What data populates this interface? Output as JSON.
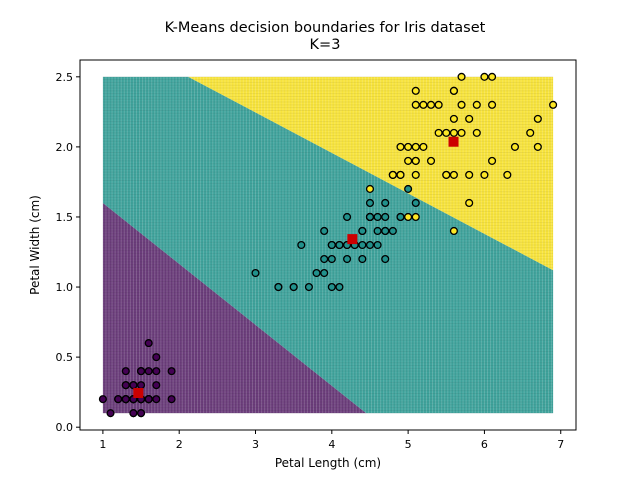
{
  "chart_data": {
    "type": "scatter",
    "title": "K-Means decision boundaries for Iris dataset",
    "subtitle": "K=3",
    "xlabel": "Petal Length (cm)",
    "ylabel": "Petal Width (cm)",
    "xlim": [
      0.7,
      7.2
    ],
    "ylim": [
      -0.02,
      2.62
    ],
    "xticks": [
      1,
      2,
      3,
      4,
      5,
      6,
      7
    ],
    "xtick_labels": [
      "1",
      "2",
      "3",
      "4",
      "5",
      "6",
      "7"
    ],
    "yticks": [
      0.0,
      0.5,
      1.0,
      1.5,
      2.0,
      2.5
    ],
    "ytick_labels": [
      "0.0",
      "0.5",
      "1.0",
      "1.5",
      "2.0",
      "2.5"
    ],
    "grid": false,
    "mesh_extent": {
      "x": [
        1.0,
        6.9
      ],
      "y": [
        0.1,
        2.5
      ]
    },
    "decision_regions": [
      {
        "cluster": 0,
        "color": "#6b3d7b",
        "polygon": [
          [
            1.0,
            0.1
          ],
          [
            4.45,
            0.1
          ],
          [
            1.0,
            1.6
          ]
        ]
      },
      {
        "cluster": 1,
        "color": "#3fa39c",
        "polygon": [
          [
            1.0,
            1.6
          ],
          [
            4.45,
            0.1
          ],
          [
            6.9,
            0.1
          ],
          [
            6.9,
            1.12
          ],
          [
            2.12,
            2.5
          ],
          [
            1.0,
            2.5
          ]
        ]
      },
      {
        "cluster": 2,
        "color": "#f8e43c",
        "polygon": [
          [
            2.12,
            2.5
          ],
          [
            6.9,
            2.5
          ],
          [
            6.9,
            1.12
          ]
        ]
      }
    ],
    "class_colors": [
      "#440154",
      "#21918c",
      "#fde725"
    ],
    "centroid_color": "#cc0000",
    "centroids": [
      [
        1.464,
        0.244
      ],
      [
        4.269,
        1.342
      ],
      [
        5.595,
        2.037
      ]
    ],
    "series": [
      {
        "class": 0,
        "points": [
          [
            1.4,
            0.2
          ],
          [
            1.4,
            0.2
          ],
          [
            1.3,
            0.2
          ],
          [
            1.5,
            0.2
          ],
          [
            1.4,
            0.2
          ],
          [
            1.7,
            0.4
          ],
          [
            1.4,
            0.3
          ],
          [
            1.5,
            0.2
          ],
          [
            1.4,
            0.2
          ],
          [
            1.5,
            0.1
          ],
          [
            1.5,
            0.2
          ],
          [
            1.6,
            0.2
          ],
          [
            1.4,
            0.1
          ],
          [
            1.1,
            0.1
          ],
          [
            1.2,
            0.2
          ],
          [
            1.5,
            0.4
          ],
          [
            1.3,
            0.4
          ],
          [
            1.4,
            0.3
          ],
          [
            1.7,
            0.3
          ],
          [
            1.5,
            0.3
          ],
          [
            1.7,
            0.2
          ],
          [
            1.5,
            0.4
          ],
          [
            1.0,
            0.2
          ],
          [
            1.7,
            0.5
          ],
          [
            1.9,
            0.2
          ],
          [
            1.6,
            0.2
          ],
          [
            1.6,
            0.4
          ],
          [
            1.5,
            0.2
          ],
          [
            1.4,
            0.2
          ],
          [
            1.6,
            0.2
          ],
          [
            1.6,
            0.2
          ],
          [
            1.5,
            0.4
          ],
          [
            1.5,
            0.1
          ],
          [
            1.4,
            0.2
          ],
          [
            1.5,
            0.2
          ],
          [
            1.2,
            0.2
          ],
          [
            1.3,
            0.2
          ],
          [
            1.4,
            0.1
          ],
          [
            1.3,
            0.2
          ],
          [
            1.5,
            0.2
          ],
          [
            1.3,
            0.3
          ],
          [
            1.3,
            0.3
          ],
          [
            1.3,
            0.2
          ],
          [
            1.6,
            0.6
          ],
          [
            1.9,
            0.4
          ],
          [
            1.4,
            0.3
          ],
          [
            1.6,
            0.2
          ],
          [
            1.4,
            0.2
          ],
          [
            1.5,
            0.2
          ],
          [
            1.4,
            0.2
          ]
        ]
      },
      {
        "class": 1,
        "points": [
          [
            4.7,
            1.4
          ],
          [
            4.5,
            1.5
          ],
          [
            4.9,
            1.5
          ],
          [
            4.0,
            1.3
          ],
          [
            4.6,
            1.5
          ],
          [
            4.5,
            1.3
          ],
          [
            4.7,
            1.6
          ],
          [
            3.3,
            1.0
          ],
          [
            4.6,
            1.3
          ],
          [
            3.9,
            1.4
          ],
          [
            3.5,
            1.0
          ],
          [
            4.2,
            1.5
          ],
          [
            4.0,
            1.0
          ],
          [
            4.7,
            1.4
          ],
          [
            3.6,
            1.3
          ],
          [
            4.4,
            1.4
          ],
          [
            4.5,
            1.5
          ],
          [
            4.1,
            1.0
          ],
          [
            4.5,
            1.5
          ],
          [
            3.9,
            1.1
          ],
          [
            4.8,
            1.8
          ],
          [
            4.0,
            1.3
          ],
          [
            4.9,
            1.5
          ],
          [
            4.7,
            1.2
          ],
          [
            4.3,
            1.3
          ],
          [
            4.4,
            1.4
          ],
          [
            4.8,
            1.4
          ],
          [
            5.0,
            1.7
          ],
          [
            4.5,
            1.5
          ],
          [
            3.5,
            1.0
          ],
          [
            3.8,
            1.1
          ],
          [
            3.7,
            1.0
          ],
          [
            3.9,
            1.2
          ],
          [
            5.1,
            1.6
          ],
          [
            4.5,
            1.5
          ],
          [
            4.5,
            1.6
          ],
          [
            4.7,
            1.5
          ],
          [
            4.4,
            1.3
          ],
          [
            4.1,
            1.3
          ],
          [
            4.0,
            1.3
          ],
          [
            4.4,
            1.2
          ],
          [
            4.6,
            1.4
          ],
          [
            4.0,
            1.2
          ],
          [
            3.3,
            1.0
          ],
          [
            4.2,
            1.3
          ],
          [
            4.2,
            1.2
          ],
          [
            4.2,
            1.3
          ],
          [
            4.3,
            1.3
          ],
          [
            3.0,
            1.1
          ],
          [
            4.1,
            1.3
          ]
        ]
      },
      {
        "class": 2,
        "points": [
          [
            6.0,
            2.5
          ],
          [
            5.1,
            1.9
          ],
          [
            5.9,
            2.1
          ],
          [
            5.6,
            1.8
          ],
          [
            5.8,
            2.2
          ],
          [
            6.6,
            2.1
          ],
          [
            4.5,
            1.7
          ],
          [
            6.3,
            1.8
          ],
          [
            5.8,
            1.8
          ],
          [
            6.1,
            2.5
          ],
          [
            5.1,
            2.0
          ],
          [
            5.3,
            1.9
          ],
          [
            5.5,
            2.1
          ],
          [
            5.0,
            2.0
          ],
          [
            5.1,
            2.4
          ],
          [
            5.3,
            2.3
          ],
          [
            5.5,
            1.8
          ],
          [
            6.7,
            2.2
          ],
          [
            6.9,
            2.3
          ],
          [
            5.0,
            1.5
          ],
          [
            5.7,
            2.3
          ],
          [
            4.9,
            2.0
          ],
          [
            6.7,
            2.0
          ],
          [
            4.9,
            1.8
          ],
          [
            5.7,
            2.1
          ],
          [
            6.0,
            1.8
          ],
          [
            4.8,
            1.8
          ],
          [
            4.9,
            1.8
          ],
          [
            5.6,
            2.1
          ],
          [
            5.8,
            1.6
          ],
          [
            6.1,
            1.9
          ],
          [
            6.4,
            2.0
          ],
          [
            5.6,
            2.2
          ],
          [
            5.1,
            1.5
          ],
          [
            5.6,
            1.4
          ],
          [
            6.1,
            2.3
          ],
          [
            5.6,
            2.4
          ],
          [
            5.5,
            1.8
          ],
          [
            4.8,
            1.8
          ],
          [
            5.4,
            2.1
          ],
          [
            5.6,
            2.4
          ],
          [
            5.1,
            2.3
          ],
          [
            5.1,
            1.9
          ],
          [
            5.9,
            2.3
          ],
          [
            5.7,
            2.5
          ],
          [
            5.2,
            2.3
          ],
          [
            5.0,
            1.9
          ],
          [
            5.2,
            2.0
          ],
          [
            5.4,
            2.3
          ],
          [
            5.1,
            1.8
          ]
        ]
      }
    ]
  }
}
